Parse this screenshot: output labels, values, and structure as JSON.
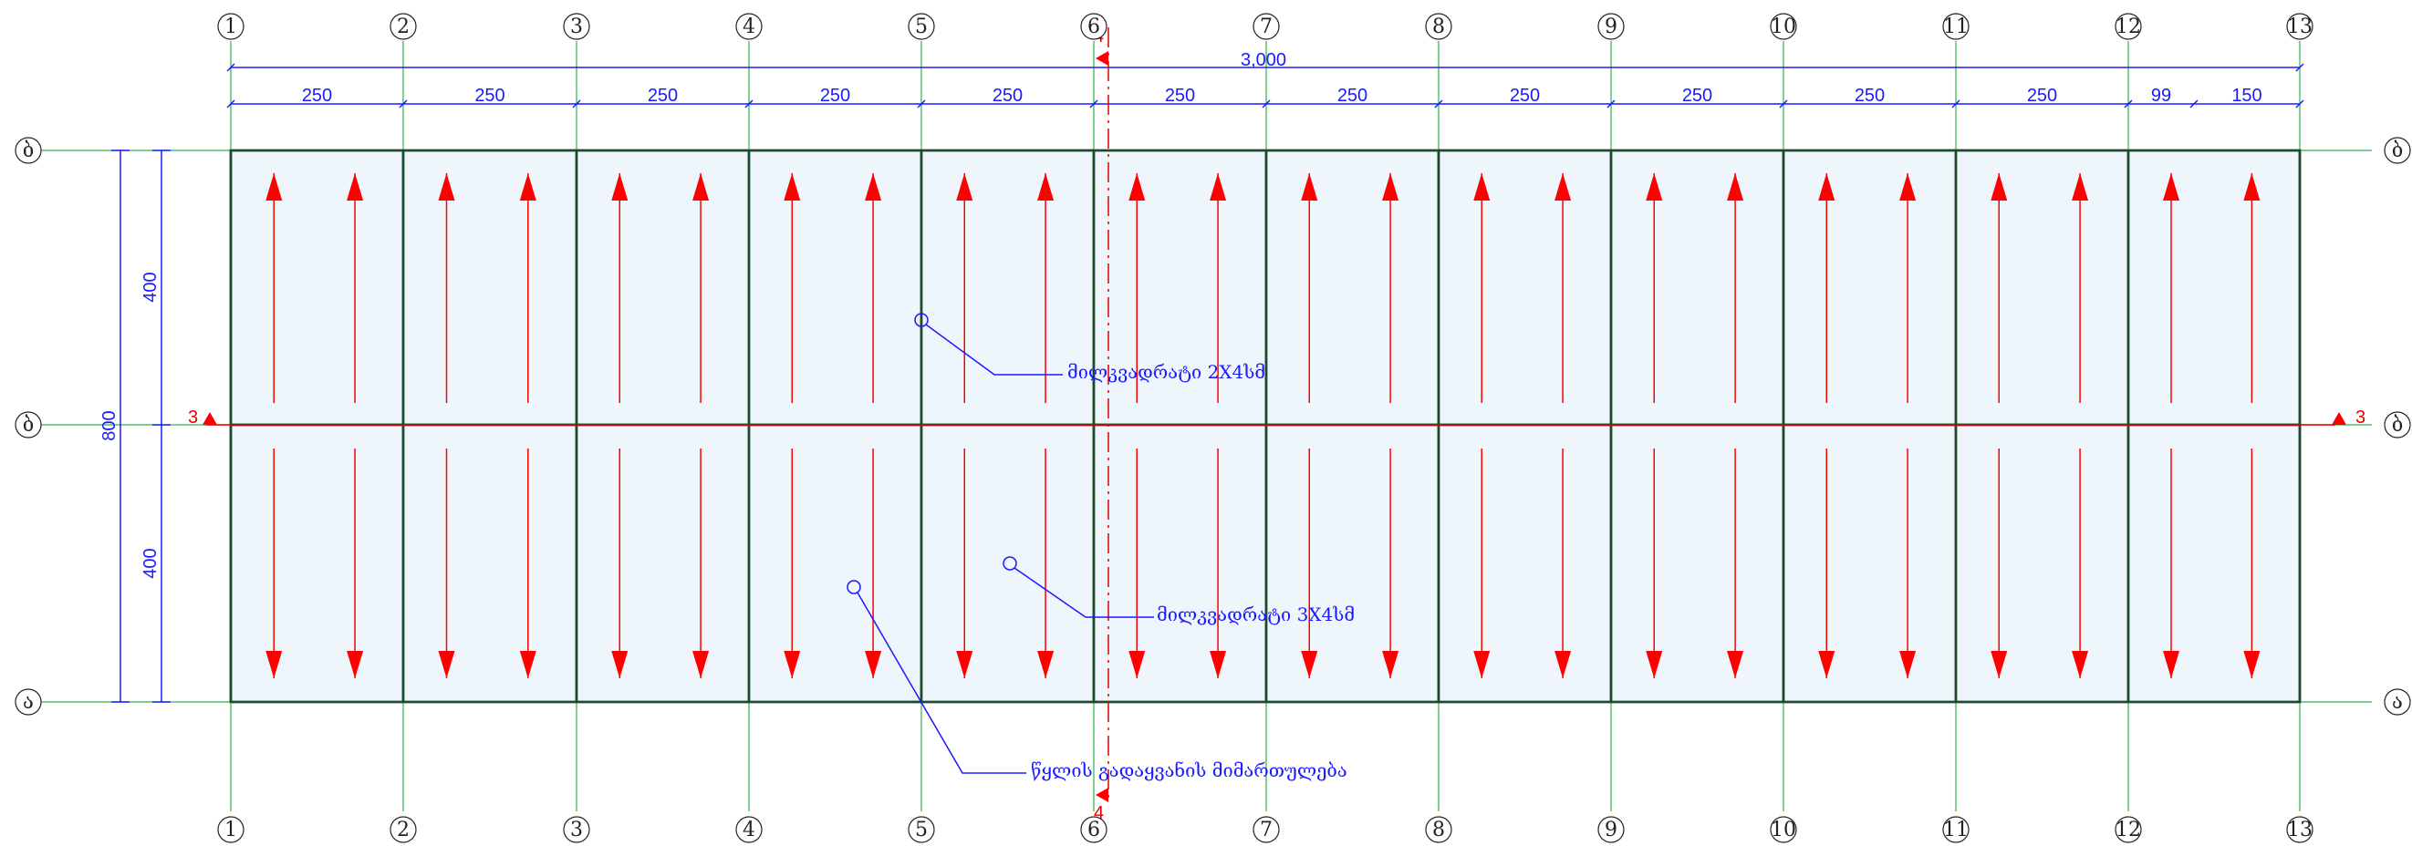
{
  "colors": {
    "panel_fill": "#eef5fb",
    "panel_edge": "#1d4a2a",
    "grid_line": "#2db34a",
    "dimension": "#1a1aff",
    "arrow": "#ff0000",
    "section": "#e00000",
    "callout": "#1a1aff"
  },
  "column_axes": [
    "1",
    "2",
    "3",
    "4",
    "5",
    "6",
    "7",
    "8",
    "9",
    "10",
    "11",
    "12",
    "13"
  ],
  "row_axes": [
    "ბ",
    "ბ",
    "ა"
  ],
  "top_dimensions": {
    "overall": "3,000",
    "spans": [
      "250",
      "250",
      "250",
      "250",
      "250",
      "250",
      "250",
      "250",
      "250",
      "250",
      "250",
      "99",
      "150"
    ]
  },
  "left_dimensions": {
    "overall": "800",
    "spans": [
      "400",
      "400"
    ]
  },
  "section_marks": {
    "horizontal": "3",
    "vertical": "4"
  },
  "callouts": [
    {
      "text": "მილკვადრატი 2X4სმ"
    },
    {
      "text": "მილკვადრატი 3X4სმ"
    },
    {
      "text": "წყლის გადაყვანის მიმართულება"
    }
  ],
  "icons": {
    "slope_arrow": "red-arrow-icon",
    "section_marker": "red-triangle-icon"
  }
}
